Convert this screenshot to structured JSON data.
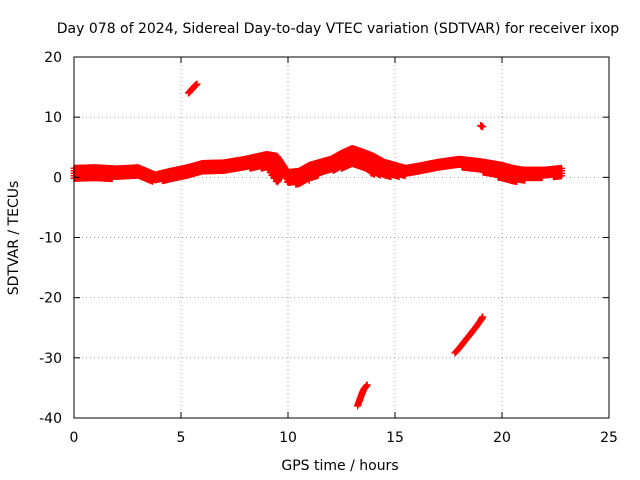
{
  "chart_data": {
    "type": "scatter",
    "title": "Day 078 of 2024, Sidereal Day-to-day VTEC variation (SDTVAR) for receiver ixop",
    "xlabel": "GPS time / hours",
    "ylabel": "SDTVAR / TECUs",
    "xlim": [
      0,
      25
    ],
    "ylim": [
      -40,
      20
    ],
    "x_ticks": [
      0,
      5,
      10,
      15,
      20,
      25
    ],
    "y_ticks": [
      -40,
      -30,
      -20,
      -10,
      0,
      10,
      20
    ],
    "grid": true,
    "marker": "plus",
    "color": "#ff0000",
    "series": [
      {
        "name": "main band (upper edge)",
        "points": [
          [
            0,
            1.5
          ],
          [
            1,
            1.6
          ],
          [
            2,
            1.4
          ],
          [
            3,
            1.6
          ],
          [
            3.8,
            0.4
          ],
          [
            4.5,
            1.0
          ],
          [
            5.3,
            1.6
          ],
          [
            6,
            2.3
          ],
          [
            7,
            2.4
          ],
          [
            8,
            3.0
          ],
          [
            9,
            3.8
          ],
          [
            9.5,
            3.5
          ],
          [
            10,
            0.8
          ],
          [
            10.5,
            1.0
          ],
          [
            11,
            2.0
          ],
          [
            12,
            3.0
          ],
          [
            12.5,
            4.0
          ],
          [
            13,
            4.8
          ],
          [
            13.5,
            4.2
          ],
          [
            14,
            3.5
          ],
          [
            14.5,
            2.5
          ],
          [
            15,
            2.0
          ],
          [
            15.5,
            1.5
          ],
          [
            16,
            1.8
          ],
          [
            17,
            2.5
          ],
          [
            18,
            3.0
          ],
          [
            19,
            2.6
          ],
          [
            20,
            2.0
          ],
          [
            20.5,
            1.5
          ],
          [
            21,
            1.2
          ],
          [
            22,
            1.2
          ],
          [
            22.8,
            1.5
          ]
        ]
      },
      {
        "name": "main band (lower edge)",
        "points": [
          [
            0,
            -0.5
          ],
          [
            1,
            -0.3
          ],
          [
            2,
            -0.2
          ],
          [
            3,
            0.0
          ],
          [
            3.8,
            -0.8
          ],
          [
            4.5,
            -0.3
          ],
          [
            5.3,
            0.3
          ],
          [
            6,
            1.0
          ],
          [
            7,
            1.0
          ],
          [
            8,
            1.5
          ],
          [
            9,
            1.5
          ],
          [
            9.2,
            0.5
          ],
          [
            9.5,
            -1.0
          ],
          [
            9.8,
            0.8
          ],
          [
            10,
            -1.0
          ],
          [
            10.5,
            -1.2
          ],
          [
            11,
            -0.5
          ],
          [
            11.5,
            0.5
          ],
          [
            12,
            1.0
          ],
          [
            12.5,
            1.5
          ],
          [
            13,
            2.0
          ],
          [
            13.5,
            1.5
          ],
          [
            14,
            0.5
          ],
          [
            14.5,
            0.3
          ],
          [
            15,
            0.0
          ],
          [
            15.5,
            0.3
          ],
          [
            16,
            0.8
          ],
          [
            17,
            1.5
          ],
          [
            18,
            1.8
          ],
          [
            19,
            1.0
          ],
          [
            20,
            -0.2
          ],
          [
            20.5,
            -0.8
          ],
          [
            21,
            -0.5
          ],
          [
            22,
            0.0
          ],
          [
            22.8,
            0.2
          ]
        ]
      },
      {
        "name": "segment near 5.6h",
        "points": [
          [
            5.35,
            14.0
          ],
          [
            5.45,
            14.4
          ],
          [
            5.55,
            14.8
          ],
          [
            5.65,
            15.2
          ],
          [
            5.75,
            15.5
          ]
        ]
      },
      {
        "name": "point near 19h",
        "points": [
          [
            19.0,
            8.6
          ],
          [
            19.1,
            8.4
          ]
        ]
      },
      {
        "name": "segment near 13.5h",
        "points": [
          [
            13.25,
            -38.0
          ],
          [
            13.35,
            -37.0
          ],
          [
            13.45,
            -36.0
          ],
          [
            13.55,
            -35.2
          ],
          [
            13.7,
            -34.5
          ]
        ]
      },
      {
        "name": "segment near 18.5h",
        "points": [
          [
            17.8,
            -29.2
          ],
          [
            18.0,
            -28.4
          ],
          [
            18.2,
            -27.5
          ],
          [
            18.4,
            -26.6
          ],
          [
            18.6,
            -25.7
          ],
          [
            18.8,
            -24.8
          ],
          [
            19.0,
            -23.8
          ],
          [
            19.1,
            -23.2
          ]
        ]
      }
    ]
  }
}
